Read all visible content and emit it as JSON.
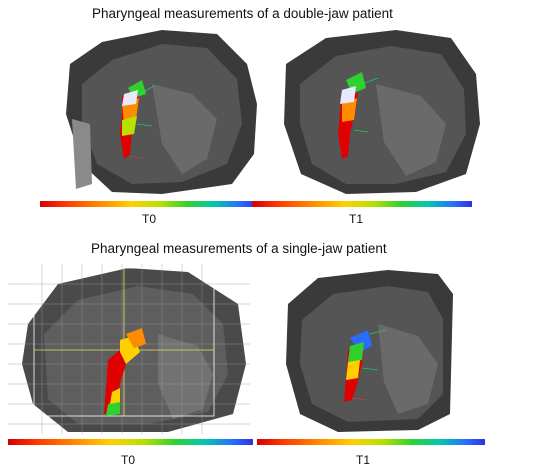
{
  "sections": [
    {
      "title": "Pharyngeal measurements of a double-jaw patient",
      "labels": [
        "T0",
        "T1"
      ]
    },
    {
      "title": "Pharyngeal measurements of a single-jaw patient",
      "labels": [
        "T0",
        "T1"
      ]
    }
  ],
  "colors": {
    "background": "#ffffff",
    "scan": "#2a2a2a",
    "airway_low": "#e00000",
    "airway_mid": "#ffd000",
    "airway_high": "#1f40e0"
  }
}
